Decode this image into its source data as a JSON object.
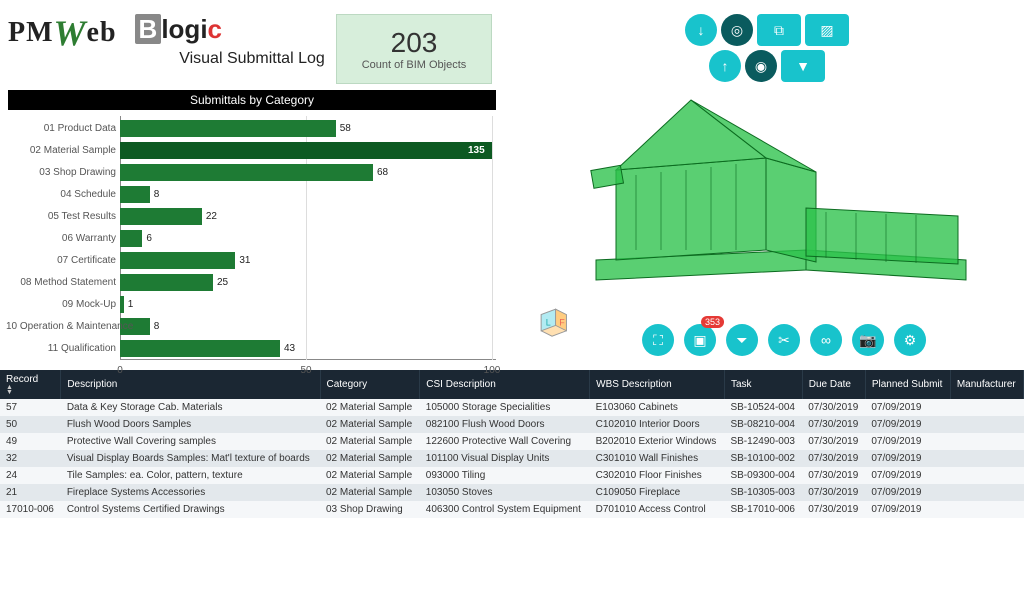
{
  "logos": {
    "pm": "PM",
    "w": "W",
    "eb": "eb",
    "b": "B",
    "logic": "logi",
    "c": "c"
  },
  "subtitle": "Visual Submittal Log",
  "count_box": {
    "num": "203",
    "lbl": "Count of BIM Objects"
  },
  "section_title": "Submittals by Category",
  "chart": {
    "type": "bar",
    "xlim": [
      0,
      100
    ],
    "x_ticks": [
      0,
      50,
      100
    ],
    "bar_color": "#1e7b34",
    "bar_highlight_color": "#0d5a22",
    "bars": [
      {
        "label": "01 Product Data",
        "value": 58,
        "highlight": false
      },
      {
        "label": "02 Material Sample",
        "value": 135,
        "highlight": true
      },
      {
        "label": "03 Shop Drawing",
        "value": 68,
        "highlight": false
      },
      {
        "label": "04 Schedule",
        "value": 8,
        "highlight": false
      },
      {
        "label": "05 Test Results",
        "value": 22,
        "highlight": false
      },
      {
        "label": "06 Warranty",
        "value": 6,
        "highlight": false
      },
      {
        "label": "07 Certificate",
        "value": 31,
        "highlight": false
      },
      {
        "label": "08 Method Statement",
        "value": 25,
        "highlight": false
      },
      {
        "label": "09 Mock-Up",
        "value": 1,
        "highlight": false
      },
      {
        "label": "10 Operation & Maintenance",
        "value": 8,
        "highlight": false
      },
      {
        "label": "11 Qualification",
        "value": 43,
        "highlight": false
      }
    ]
  },
  "toolbar": {
    "top": [
      {
        "name": "arrow-down-icon",
        "glyph": "↓"
      },
      {
        "name": "target-icon",
        "glyph": "◎",
        "dark": true
      },
      {
        "name": "duplicate-icon",
        "glyph": "⧉",
        "square": true
      },
      {
        "name": "hatch-icon",
        "glyph": "▨",
        "square": true
      }
    ],
    "top2": [
      {
        "name": "arrow-up-icon",
        "glyph": "↑"
      },
      {
        "name": "record-icon",
        "glyph": "◉",
        "dark": true
      },
      {
        "name": "filter-icon",
        "glyph": "▼",
        "square": true
      }
    ],
    "bottom": [
      {
        "name": "expand-icon",
        "glyph": "⛶"
      },
      {
        "name": "select-box-icon",
        "glyph": "▣",
        "badge": "353"
      },
      {
        "name": "filter-clear-icon",
        "glyph": "⏷"
      },
      {
        "name": "cut-icon",
        "glyph": "✂"
      },
      {
        "name": "link-icon",
        "glyph": "∞"
      },
      {
        "name": "camera-icon",
        "glyph": "📷"
      },
      {
        "name": "gear-icon",
        "glyph": "⚙"
      }
    ],
    "cube": {
      "l": "L",
      "f": "F"
    }
  },
  "table": {
    "columns": [
      "Record",
      "Description",
      "Category",
      "CSI Description",
      "WBS Description",
      "Task",
      "Due Date",
      "Planned Submit",
      "Manufacturer"
    ],
    "rows": [
      [
        "57",
        "Data & Key Storage Cab. Materials",
        "02 Material Sample",
        "105000 Storage Specialities",
        "E103060 Cabinets",
        "SB-10524-004",
        "07/30/2019",
        "07/09/2019",
        ""
      ],
      [
        "50",
        "Flush Wood Doors Samples",
        "02 Material Sample",
        "082100 Flush Wood Doors",
        "C102010 Interior Doors",
        "SB-08210-004",
        "07/30/2019",
        "07/09/2019",
        ""
      ],
      [
        "49",
        "Protective Wall Covering samples",
        "02 Material Sample",
        "122600 Protective Wall Covering",
        "B202010 Exterior Windows",
        "SB-12490-003",
        "07/30/2019",
        "07/09/2019",
        ""
      ],
      [
        "32",
        "Visual Display Boards Samples: Mat'l texture of boards",
        "02 Material Sample",
        "101100 Visual Display Units",
        "C301010 Wall Finishes",
        "SB-10100-002",
        "07/30/2019",
        "07/09/2019",
        ""
      ],
      [
        "24",
        "Tile Samples: ea. Color, pattern, texture",
        "02 Material Sample",
        "093000 Tiling",
        "C302010 Floor Finishes",
        "SB-09300-004",
        "07/30/2019",
        "07/09/2019",
        ""
      ],
      [
        "21",
        "Fireplace Systems Accessories",
        "02 Material Sample",
        "103050 Stoves",
        "C109050 Fireplace",
        "SB-10305-003",
        "07/30/2019",
        "07/09/2019",
        ""
      ],
      [
        "17010-006",
        "Control Systems Certified Drawings",
        "03 Shop Drawing",
        "406300 Control System Equipment",
        "D701010 Access Control",
        "SB-17010-006",
        "07/30/2019",
        "07/09/2019",
        ""
      ]
    ]
  },
  "colors": {
    "teal": "#18c3cc",
    "teal_dark": "#0a5b5e",
    "badge": "#e53935",
    "header": "#1b2733",
    "model_fill": "#2bc24a",
    "model_stroke": "#0c6b20"
  }
}
